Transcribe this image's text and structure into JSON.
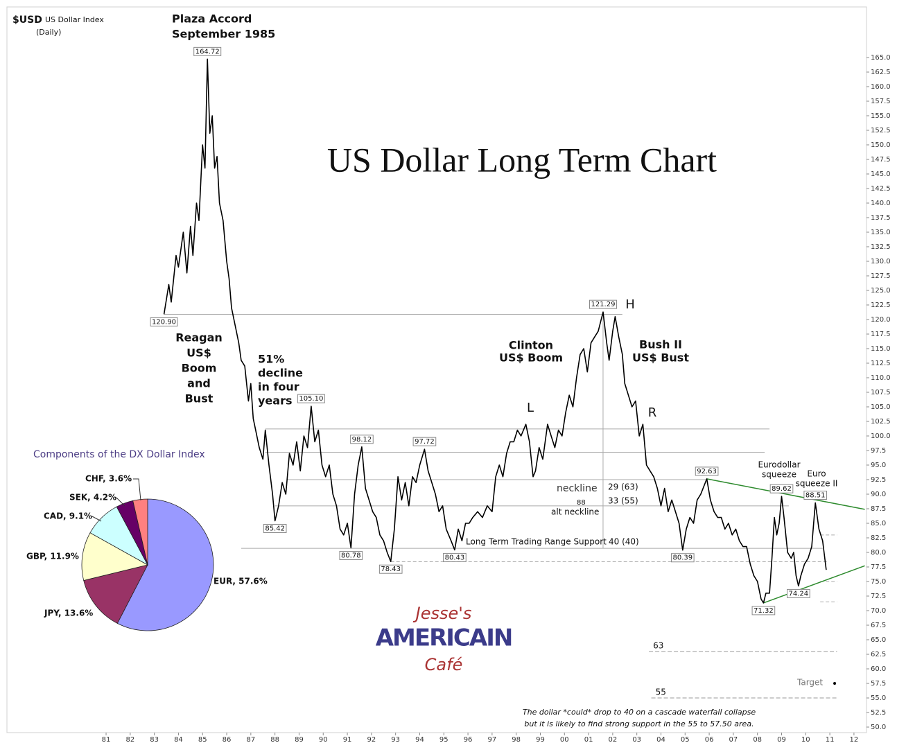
{
  "logo": [
    "Jesse's",
    "AMERICAIN",
    "Café"
  ],
  "chart_data": [
    {
      "type": "line",
      "title": "US Dollar Long Term Chart",
      "header": [
        "$USD",
        "US Dollar Index",
        "(Daily)"
      ],
      "note": [
        "The dollar *could* drop to 40 on a cascade waterfall collapse",
        "but it is likely to find strong support in the 55 to 57.50 area."
      ],
      "annotations": [
        [
          "Plaza Accord",
          "September 1985"
        ],
        [
          "Reagan",
          "US$",
          "Boom",
          "and",
          "Bust"
        ],
        [
          "51%",
          "decline",
          "in four",
          "years"
        ],
        [
          "Clinton",
          "US$ Boom"
        ],
        [
          "Bush II",
          "US$ Bust"
        ],
        [
          "H"
        ],
        [
          "L"
        ],
        [
          "R"
        ],
        [
          "neckline"
        ],
        [
          "29 (63)"
        ],
        [
          "88"
        ],
        [
          "33 (55)"
        ],
        [
          "alt neckline"
        ],
        [
          "Long Term Trading Range Support"
        ],
        [
          "40 (40)"
        ],
        [
          "Eurodollar",
          "squeeze"
        ],
        [
          "Euro",
          "squeeze II"
        ],
        [
          "Target"
        ]
      ],
      "xlim": [
        1976.89,
        2012.52
      ],
      "ylim": [
        49.05,
        173.69
      ],
      "xticks": [
        {
          "value": 1981,
          "label": "81"
        },
        {
          "value": 1982,
          "label": "82"
        },
        {
          "value": 1983,
          "label": "83"
        },
        {
          "value": 1984,
          "label": "84"
        },
        {
          "value": 1985,
          "label": "85"
        },
        {
          "value": 1986,
          "label": "86"
        },
        {
          "value": 1987,
          "label": "87"
        },
        {
          "value": 1988,
          "label": "88"
        },
        {
          "value": 1989,
          "label": "89"
        },
        {
          "value": 1990,
          "label": "90"
        },
        {
          "value": 1991,
          "label": "91"
        },
        {
          "value": 1992,
          "label": "92"
        },
        {
          "value": 1993,
          "label": "93"
        },
        {
          "value": 1994,
          "label": "94"
        },
        {
          "value": 1995,
          "label": "95"
        },
        {
          "value": 1996,
          "label": "96"
        },
        {
          "value": 1997,
          "label": "97"
        },
        {
          "value": 1998,
          "label": "98"
        },
        {
          "value": 1999,
          "label": "99"
        },
        {
          "value": 2000,
          "label": "00"
        },
        {
          "value": 2001,
          "label": "01"
        },
        {
          "value": 2002,
          "label": "02"
        },
        {
          "value": 2003,
          "label": "03"
        },
        {
          "value": 2004,
          "label": "04"
        },
        {
          "value": 2005,
          "label": "05"
        },
        {
          "value": 2006,
          "label": "06"
        },
        {
          "value": 2007,
          "label": "07"
        },
        {
          "value": 2008,
          "label": "08"
        },
        {
          "value": 2009,
          "label": "09"
        },
        {
          "value": 2010,
          "label": "10"
        },
        {
          "value": 2011,
          "label": "11"
        },
        {
          "value": 2012,
          "label": "12"
        }
      ],
      "yticks": [
        {
          "value": 50,
          "label": "50.0"
        },
        {
          "value": 52.5,
          "label": "52.5"
        },
        {
          "value": 55,
          "label": "55.0"
        },
        {
          "value": 57.5,
          "label": "57.5"
        },
        {
          "value": 60,
          "label": "60.0"
        },
        {
          "value": 62.5,
          "label": "62.5"
        },
        {
          "value": 65,
          "label": "65.0"
        },
        {
          "value": 67.5,
          "label": "67.5"
        },
        {
          "value": 70,
          "label": "70.0"
        },
        {
          "value": 72.5,
          "label": "72.5"
        },
        {
          "value": 75,
          "label": "75.0"
        },
        {
          "value": 77.5,
          "label": "77.5"
        },
        {
          "value": 80,
          "label": "80.0"
        },
        {
          "value": 82.5,
          "label": "82.5"
        },
        {
          "value": 85,
          "label": "85.0"
        },
        {
          "value": 87.5,
          "label": "87.5"
        },
        {
          "value": 90,
          "label": "90.0"
        },
        {
          "value": 92.5,
          "label": "92.5"
        },
        {
          "value": 95,
          "label": "95.0"
        },
        {
          "value": 97.5,
          "label": "97.5"
        },
        {
          "value": 100,
          "label": "100.0"
        },
        {
          "value": 102.5,
          "label": "102.5"
        },
        {
          "value": 105,
          "label": "105.0"
        },
        {
          "value": 107.5,
          "label": "107.5"
        },
        {
          "value": 110,
          "label": "110.0"
        },
        {
          "value": 112.5,
          "label": "112.5"
        },
        {
          "value": 115,
          "label": "115.0"
        },
        {
          "value": 117.5,
          "label": "117.5"
        },
        {
          "value": 120,
          "label": "120.0"
        },
        {
          "value": 122.5,
          "label": "122.5"
        },
        {
          "value": 125,
          "label": "125.0"
        },
        {
          "value": 127.5,
          "label": "127.5"
        },
        {
          "value": 130,
          "label": "130.0"
        },
        {
          "value": 132.5,
          "label": "132.5"
        },
        {
          "value": 135,
          "label": "135.0"
        },
        {
          "value": 137.5,
          "label": "137.5"
        },
        {
          "value": 140,
          "label": "140.0"
        },
        {
          "value": 142.5,
          "label": "142.5"
        },
        {
          "value": 145,
          "label": "145.0"
        },
        {
          "value": 147.5,
          "label": "147.5"
        },
        {
          "value": 150,
          "label": "150.0"
        },
        {
          "value": 152.5,
          "label": "152.5"
        },
        {
          "value": 155,
          "label": "155.0"
        },
        {
          "value": 157.5,
          "label": "157.5"
        },
        {
          "value": 160,
          "label": "160.0"
        },
        {
          "value": 162.5,
          "label": "162.5"
        },
        {
          "value": 165,
          "label": "165.0"
        }
      ],
      "series": [
        {
          "color": "#000000",
          "x": [
            1983.4,
            1983.6,
            1983.7,
            1983.9,
            1984.0,
            1984.2,
            1984.35,
            1984.5,
            1984.6,
            1984.75,
            1984.85,
            1985.0,
            1985.1,
            1985.2,
            1985.3,
            1985.4,
            1985.5,
            1985.6,
            1985.7,
            1985.85,
            1986.0,
            1986.1,
            1986.2,
            1986.35,
            1986.5,
            1986.6,
            1986.75,
            1986.9,
            1987.0,
            1987.1,
            1987.2,
            1987.35,
            1987.5,
            1987.6,
            1987.75,
            1987.9,
            1988.0,
            1988.15,
            1988.3,
            1988.45,
            1988.6,
            1988.75,
            1988.9,
            1989.05,
            1989.2,
            1989.35,
            1989.5,
            1989.65,
            1989.8,
            1989.95,
            1990.1,
            1990.25,
            1990.4,
            1990.55,
            1990.7,
            1990.85,
            1991.0,
            1991.15,
            1991.3,
            1991.45,
            1991.6,
            1991.75,
            1991.9,
            1992.05,
            1992.2,
            1992.35,
            1992.5,
            1992.65,
            1992.8,
            1992.95,
            1993.1,
            1993.25,
            1993.4,
            1993.55,
            1993.7,
            1993.85,
            1994.0,
            1994.2,
            1994.35,
            1994.5,
            1994.65,
            1994.8,
            1994.95,
            1995.1,
            1995.3,
            1995.45,
            1995.6,
            1995.75,
            1995.9,
            1996.05,
            1996.2,
            1996.4,
            1996.6,
            1996.8,
            1997.0,
            1997.15,
            1997.3,
            1997.45,
            1997.6,
            1997.75,
            1997.9,
            1998.05,
            1998.2,
            1998.4,
            1998.55,
            1998.7,
            1998.8,
            1998.95,
            1999.1,
            1999.3,
            1999.45,
            1999.6,
            1999.75,
            1999.9,
            2000.05,
            2000.2,
            2000.35,
            2000.5,
            2000.65,
            2000.8,
            2000.95,
            2001.1,
            2001.25,
            2001.4,
            2001.6,
            2001.75,
            2001.85,
            2002.0,
            2002.1,
            2002.25,
            2002.4,
            2002.5,
            2002.65,
            2002.8,
            2002.95,
            2003.1,
            2003.25,
            2003.4,
            2003.55,
            2003.7,
            2003.85,
            2004.0,
            2004.15,
            2004.3,
            2004.45,
            2004.6,
            2004.75,
            2004.9,
            2005.05,
            2005.2,
            2005.35,
            2005.5,
            2005.65,
            2005.9,
            2006.05,
            2006.2,
            2006.35,
            2006.5,
            2006.65,
            2006.8,
            2006.95,
            2007.1,
            2007.25,
            2007.4,
            2007.55,
            2007.7,
            2007.85,
            2008.0,
            2008.15,
            2008.25,
            2008.35,
            2008.5,
            2008.6,
            2008.7,
            2008.8,
            2008.9,
            2009.0,
            2009.1,
            2009.25,
            2009.4,
            2009.5,
            2009.6,
            2009.7,
            2009.8,
            2009.95,
            2010.1,
            2010.25,
            2010.4,
            2010.55,
            2010.7,
            2010.85
          ],
          "values": [
            120.9,
            126,
            123,
            131,
            129,
            135,
            128,
            136,
            131,
            140,
            137,
            150,
            146,
            164.72,
            152,
            155,
            146,
            148,
            140,
            137,
            130,
            127,
            122,
            119,
            116,
            113,
            112,
            106,
            109,
            103,
            101,
            98,
            96,
            101,
            95,
            90,
            85.42,
            88,
            92,
            90,
            97,
            95,
            99,
            94,
            100,
            98,
            105.1,
            99,
            101,
            95,
            93,
            95,
            90,
            88,
            84,
            83,
            85,
            80.78,
            90,
            95,
            98.12,
            91,
            89,
            87,
            86,
            83,
            82,
            80,
            78.43,
            84,
            93,
            89,
            92,
            88,
            93,
            92,
            95,
            97.72,
            94,
            92,
            90,
            87,
            88,
            84,
            82,
            80.43,
            84,
            82,
            85,
            85,
            86,
            87,
            86,
            88,
            87,
            93,
            95,
            93,
            97,
            99,
            99,
            101,
            100,
            102,
            99,
            93,
            94,
            98,
            96,
            102,
            100,
            98,
            101,
            100,
            104,
            107,
            105,
            110,
            114,
            115,
            111,
            116,
            117,
            118,
            121.29,
            116,
            113,
            118,
            120.5,
            117,
            114,
            109,
            107,
            105,
            106,
            100,
            102,
            95,
            94,
            93,
            91,
            88,
            91,
            87,
            89,
            87,
            85,
            80.39,
            84,
            86,
            85,
            89,
            90,
            92.63,
            89,
            87,
            86,
            86,
            84,
            85,
            83,
            84,
            82,
            81,
            81,
            78,
            76,
            75,
            72,
            71.32,
            73,
            73,
            79,
            86,
            83,
            85,
            89.62,
            86,
            80,
            79,
            80,
            76,
            74.24,
            76,
            78,
            79,
            81,
            88.51,
            84,
            82,
            77
          ]
        }
      ],
      "value_boxes": [
        {
          "x": 1985.2,
          "value": 164.72
        },
        {
          "x": 1983.4,
          "value": 120.9,
          "label": "120.90"
        },
        {
          "x": 1988.0,
          "value": 85.42
        },
        {
          "x": 1989.5,
          "value": 105.1,
          "label": "105.10"
        },
        {
          "x": 1991.15,
          "value": 80.78
        },
        {
          "x": 1991.6,
          "value": 98.12
        },
        {
          "x": 1992.8,
          "value": 78.43
        },
        {
          "x": 1994.2,
          "value": 97.72
        },
        {
          "x": 1995.45,
          "value": 80.43
        },
        {
          "x": 2001.6,
          "value": 121.29
        },
        {
          "x": 2004.9,
          "value": 80.39
        },
        {
          "x": 2005.9,
          "value": 92.63
        },
        {
          "x": 2008.25,
          "value": 71.32
        },
        {
          "x": 2009.0,
          "value": 89.62
        },
        {
          "x": 2009.7,
          "value": 74.24
        },
        {
          "x": 2010.4,
          "value": 88.51
        }
      ],
      "levels": [
        {
          "value": 120.9,
          "x": [
            1983.4,
            2002.4
          ]
        },
        {
          "value": 101.2,
          "x": [
            1987.6,
            2008.5
          ]
        },
        {
          "value": 97.2,
          "x": [
            1987.6,
            2008.3
          ]
        },
        {
          "value": 92.5,
          "x": [
            1988.5,
            2005.9
          ]
        },
        {
          "value": 88,
          "x": [
            1988.0,
            2009.3
          ]
        },
        {
          "value": 80.7,
          "x": [
            1986.6,
            2010.7
          ]
        }
      ],
      "dashed_levels": [
        {
          "value": 78.4,
          "x": [
            1992.8,
            2010.9
          ]
        },
        {
          "value": 83,
          "x": [
            2010.6,
            2011.3
          ]
        },
        {
          "value": 75,
          "x": [
            2010.6,
            2011.3
          ]
        },
        {
          "value": 71.5,
          "x": [
            2010.6,
            2011.3
          ]
        }
      ],
      "target_levels": [
        {
          "value": 63,
          "x": [
            2003.5,
            2011.3
          ]
        },
        {
          "value": 55,
          "x": [
            2003.6,
            2011.3
          ]
        }
      ],
      "target": {
        "x": 2011.2,
        "value": 57.5
      },
      "drop_line": {
        "x": 2001.6,
        "values": [
          80.7,
          121.29
        ]
      },
      "trendlines": [
        {
          "color": "#2e8b2e",
          "x": [
            2005.9,
            2012.45
          ],
          "values": [
            92.63,
            87.4
          ]
        },
        {
          "color": "#2e8b2e",
          "x": [
            2008.25,
            2012.45
          ],
          "values": [
            71.32,
            77.7
          ]
        }
      ]
    },
    {
      "type": "pie",
      "title": "Components of the DX Dollar Index",
      "values": [
        57.6,
        13.6,
        11.9,
        9.1,
        4.2,
        3.6
      ],
      "value_labels": [
        "EUR, 57.6%",
        "JPY, 13.6%",
        "GBP, 11.9%",
        "CAD, 9.1%",
        "SEK, 4.2%",
        "CHF, 3.6%"
      ],
      "colors": [
        "#9999ff",
        "#993366",
        "#ffffcc",
        "#ccffff",
        "#660066",
        "#ff8080"
      ]
    }
  ]
}
